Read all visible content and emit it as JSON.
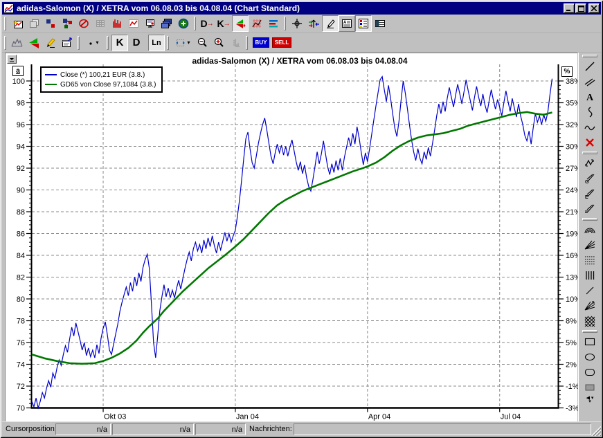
{
  "window": {
    "title": "adidas-Salomon (X) / XETRA vom 06.08.03 bis 04.08.04 (Chart Standard)",
    "controls": [
      "minimize",
      "maximize",
      "close"
    ]
  },
  "toolbar_main": {
    "icons": [
      "new-chart",
      "copy-pages",
      "data-squares",
      "flow-squares",
      "no-edit",
      "data-table",
      "histogram",
      "line-chart",
      "presentation",
      "window-stack",
      "add-item",
      "detail-d",
      "detail-k",
      "compare-triangles",
      "grid-chart",
      "indicator-lines",
      "crosshair",
      "shift-arrows",
      "draw-pencil",
      "text-block",
      "legend-list",
      "layout-split"
    ],
    "d_label": "D",
    "k_label": "K",
    "arrow": "→"
  },
  "toolbar_chart": {
    "icons": [
      "mountain-chart",
      "triangles",
      "marker-pen",
      "properties",
      "line-width",
      "bar-spacing",
      "zoom-out",
      "zoom-in",
      "axis-scale"
    ],
    "k_label": "K",
    "d_label": "D",
    "ln_label": "Ln",
    "buy_label": "BUY",
    "sell_label": "SELL"
  },
  "right_toolbar": {
    "icons": [
      "line-tool",
      "parallel-lines-tool",
      "text-tool",
      "zigzag-tool",
      "wave-tool",
      "delete-tool",
      "trend-tool",
      "gann-tool",
      "elliott-tool",
      "fibo-pencil-tool",
      "arcs-tool",
      "fan-lines-tool",
      "retracement-tool",
      "vertical-lines-tool",
      "diagonal-tool",
      "speed-fan-tool",
      "crosshatch-tool",
      "rectangle-tool",
      "ellipse-tool",
      "rounded-rect-tool",
      "filled-rect-tool"
    ]
  },
  "chart": {
    "title": "adidas-Salomon (X) / XETRA vom 06.08.03 bis 04.08.04",
    "left_axis_button": "a",
    "right_axis_button": "%",
    "legend": [
      {
        "label": "Close (*) 100,21 EUR (3.8.)",
        "color": "#0000cc"
      },
      {
        "label": "GD65 von Close 97,1084 (3.8.)",
        "color": "#007800"
      }
    ],
    "chart_data": {
      "type": "line",
      "title": "adidas-Salomon (X) / XETRA vom 06.08.03 bis 04.08.04",
      "x_tick_labels": [
        "Okt 03",
        "Jan 04",
        "Apr 04",
        "Jul 04"
      ],
      "x_tick_days": [
        34,
        97,
        160,
        223
      ],
      "y_left_ticks": [
        100,
        98,
        96,
        94,
        92,
        90,
        88,
        86,
        84,
        82,
        80,
        78,
        76,
        74,
        72,
        70
      ],
      "y_right_tick_labels": [
        "38%",
        "35%",
        "32%",
        "30%",
        "27%",
        "24%",
        "21%",
        "19%",
        "16%",
        "13%",
        "10%",
        "8%",
        "5%",
        "2%",
        "-1%",
        "-3%"
      ],
      "ylim": [
        70,
        100
      ],
      "total_days": 248,
      "grid": true,
      "legend_position": "top-left",
      "series": [
        {
          "name": "Close (*) 100,21 EUR (3.8.)",
          "color": "#0000cc",
          "values": [
            70.6,
            70.1,
            70.9,
            70.0,
            70.6,
            71.4,
            70.9,
            71.8,
            72.5,
            71.9,
            73.2,
            72.7,
            73.7,
            74.4,
            73.9,
            74.9,
            75.7,
            75.1,
            76.3,
            77.4,
            76.6,
            77.8,
            77.0,
            76.2,
            75.3,
            76.0,
            74.8,
            75.5,
            74.7,
            75.3,
            74.6,
            75.8,
            75.0,
            76.4,
            77.3,
            77.9,
            76.7,
            75.3,
            74.9,
            75.9,
            76.8,
            77.7,
            78.9,
            79.7,
            80.4,
            81.1,
            80.3,
            81.5,
            80.7,
            82.0,
            81.2,
            82.4,
            81.6,
            82.9,
            83.6,
            84.1,
            82.8,
            79.6,
            76.0,
            74.6,
            76.6,
            78.9,
            80.2,
            81.3,
            80.2,
            81.0,
            80.1,
            80.8,
            80.1,
            81.0,
            81.7,
            80.9,
            81.9,
            82.8,
            83.6,
            84.3,
            83.5,
            84.6,
            85.2,
            84.4,
            85.0,
            84.2,
            85.4,
            84.6,
            85.6,
            84.8,
            85.8,
            84.9,
            84.2,
            85.2,
            84.5,
            85.3,
            86.1,
            85.3,
            86.0,
            85.2,
            85.8,
            86.3,
            87.6,
            89.1,
            90.9,
            92.9,
            94.7,
            95.3,
            93.8,
            92.5,
            92.0,
            93.1,
            94.3,
            95.2,
            96.0,
            96.6,
            95.5,
            94.3,
            93.1,
            92.4,
            93.4,
            94.2,
            93.4,
            94.1,
            93.2,
            94.0,
            93.1,
            93.9,
            94.6,
            93.6,
            92.6,
            91.8,
            92.6,
            91.5,
            92.3,
            91.1,
            90.3,
            89.9,
            91.0,
            92.2,
            93.5,
            92.4,
            93.3,
            94.5,
            93.3,
            92.1,
            91.4,
            92.4,
            91.6,
            92.7,
            91.8,
            92.9,
            91.8,
            93.0,
            93.9,
            94.8,
            94.0,
            95.2,
            94.2,
            95.8,
            94.8,
            93.5,
            92.3,
            93.4,
            92.6,
            93.8,
            95.1,
            96.4,
            97.7,
            98.9,
            100.1,
            100.4,
            99.2,
            98.1,
            99.6,
            98.4,
            97.0,
            95.7,
            94.9,
            96.3,
            98.2,
            100.0,
            98.9,
            97.5,
            96.0,
            94.6,
            93.5,
            92.7,
            93.8,
            92.9,
            92.4,
            93.5,
            92.8,
            93.9,
            93.1,
            94.3,
            95.5,
            96.8,
            97.9,
            97.0,
            98.1,
            97.2,
            98.4,
            99.4,
            98.5,
            97.6,
            98.7,
            99.7,
            98.8,
            97.9,
            99.0,
            100.1,
            99.1,
            98.2,
            97.3,
            98.5,
            99.5,
            98.5,
            97.7,
            98.8,
            97.8,
            97.1,
            98.2,
            99.2,
            98.2,
            97.4,
            98.3,
            97.6,
            96.8,
            98.0,
            99.1,
            98.1,
            97.2,
            98.4,
            97.5,
            96.7,
            97.9,
            96.8,
            96.0,
            95.0,
            94.5,
            95.4,
            94.2,
            95.7,
            97.0,
            96.2,
            96.8,
            96.0,
            96.9,
            96.3,
            97.2,
            98.8,
            100.21
          ]
        },
        {
          "name": "GD65 von Close 97,1084 (3.8.)",
          "color": "#007800",
          "points": [
            [
              0,
              74.9
            ],
            [
              6,
              74.55
            ],
            [
              12,
              74.3
            ],
            [
              18,
              74.1
            ],
            [
              24,
              74.05
            ],
            [
              30,
              74.1
            ],
            [
              34,
              74.3
            ],
            [
              38,
              74.6
            ],
            [
              42,
              75.0
            ],
            [
              46,
              75.5
            ],
            [
              50,
              76.2
            ],
            [
              53,
              76.9
            ],
            [
              56,
              77.5
            ],
            [
              60,
              78.2
            ],
            [
              63,
              78.9
            ],
            [
              66,
              79.5
            ],
            [
              69,
              80.1
            ],
            [
              72,
              80.7
            ],
            [
              76,
              81.4
            ],
            [
              80,
              82.1
            ],
            [
              84,
              82.8
            ],
            [
              88,
              83.4
            ],
            [
              92,
              84.0
            ],
            [
              97,
              84.8
            ],
            [
              101,
              85.5
            ],
            [
              105,
              86.3
            ],
            [
              109,
              87.1
            ],
            [
              113,
              87.9
            ],
            [
              117,
              88.6
            ],
            [
              121,
              89.1
            ],
            [
              125,
              89.5
            ],
            [
              129,
              89.9
            ],
            [
              133,
              90.2
            ],
            [
              137,
              90.5
            ],
            [
              141,
              90.8
            ],
            [
              145,
              91.1
            ],
            [
              149,
              91.4
            ],
            [
              153,
              91.7
            ],
            [
              157,
              91.95
            ],
            [
              160,
              92.15
            ],
            [
              164,
              92.5
            ],
            [
              168,
              93.0
            ],
            [
              172,
              93.6
            ],
            [
              176,
              94.1
            ],
            [
              180,
              94.5
            ],
            [
              184,
              94.8
            ],
            [
              188,
              95.0
            ],
            [
              192,
              95.1
            ],
            [
              196,
              95.2
            ],
            [
              200,
              95.4
            ],
            [
              204,
              95.6
            ],
            [
              208,
              95.9
            ],
            [
              212,
              96.1
            ],
            [
              216,
              96.3
            ],
            [
              220,
              96.5
            ],
            [
              224,
              96.7
            ],
            [
              228,
              96.9
            ],
            [
              232,
              97.05
            ],
            [
              236,
              97.15
            ],
            [
              240,
              97.0
            ],
            [
              244,
              96.9
            ],
            [
              248,
              97.11
            ]
          ]
        }
      ]
    }
  },
  "status_bar": {
    "cursor_label": "Cursorposition:",
    "fields": [
      "n/a",
      "n/a",
      "n/a"
    ],
    "news_label": "Nachrichten:",
    "news_value": ""
  }
}
